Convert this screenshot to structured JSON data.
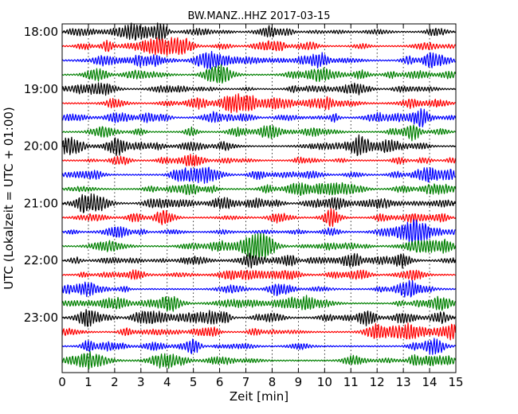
{
  "chart_data": {
    "type": "line",
    "title": "BW.MANZ..HHZ 2017-03-15",
    "xlabel": "Zeit  [min]",
    "ylabel": "UTC (Lokalzeit = UTC + 01:00)",
    "xlim": [
      0,
      15
    ],
    "x_ticks": [
      "0",
      "1",
      "2",
      "3",
      "4",
      "5",
      "6",
      "7",
      "8",
      "9",
      "10",
      "11",
      "12",
      "13",
      "14",
      "15"
    ],
    "y_ticks": [
      "18:00",
      "19:00",
      "20:00",
      "21:00",
      "22:00",
      "23:00"
    ],
    "trace_interval_minutes": 15,
    "trace_count": 24,
    "trace_colors": [
      "#000000",
      "#ff0000",
      "#0000ff",
      "#008000"
    ],
    "grid": {
      "x": true,
      "y": false
    }
  }
}
